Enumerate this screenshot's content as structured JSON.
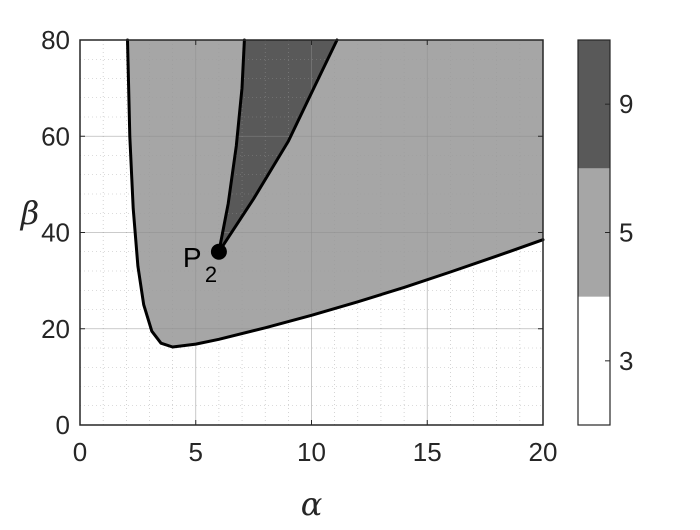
{
  "chart_data": {
    "type": "heatmap",
    "title": "",
    "xlabel": "α",
    "ylabel": "β",
    "xlim": [
      0,
      20
    ],
    "ylim": [
      0,
      80
    ],
    "xticks": [
      "0",
      "5",
      "10",
      "15",
      "20"
    ],
    "yticks": [
      "0",
      "20",
      "40",
      "60",
      "80"
    ],
    "grid": true,
    "regions": [
      {
        "value": 3,
        "description": "outside"
      },
      {
        "value": 5,
        "boundary": [
          [
            2.05,
            80
          ],
          [
            2.15,
            60
          ],
          [
            2.3,
            45
          ],
          [
            2.5,
            33
          ],
          [
            2.75,
            25
          ],
          [
            3.1,
            19.5
          ],
          [
            3.5,
            17
          ],
          [
            4,
            16.2
          ],
          [
            5,
            16.8
          ],
          [
            6,
            17.8
          ],
          [
            8,
            20.2
          ],
          [
            10,
            22.8
          ],
          [
            12,
            25.6
          ],
          [
            14,
            28.6
          ],
          [
            16,
            31.8
          ],
          [
            18,
            35.1
          ],
          [
            20,
            38.5
          ]
        ]
      },
      {
        "value": 9,
        "boundary_left": [
          [
            6,
            36
          ],
          [
            6.4,
            46
          ],
          [
            6.75,
            58
          ],
          [
            7,
            70
          ],
          [
            7.1,
            80
          ]
        ],
        "boundary_right": [
          [
            6,
            36
          ],
          [
            7.5,
            47
          ],
          [
            9,
            59
          ],
          [
            10.1,
            70
          ],
          [
            11.1,
            80
          ]
        ]
      }
    ],
    "annotations": [
      {
        "label": "P",
        "subscript": "2",
        "x": 6,
        "y": 36
      }
    ],
    "colorbar": {
      "ticks": [
        "3",
        "5",
        "9"
      ],
      "colors": [
        "#ffffff",
        "#a6a6a6",
        "#595959"
      ]
    }
  },
  "colors": {
    "region3": "#ffffff",
    "region5": "#a6a6a6",
    "region9": "#595959",
    "boundary": "#000000"
  }
}
